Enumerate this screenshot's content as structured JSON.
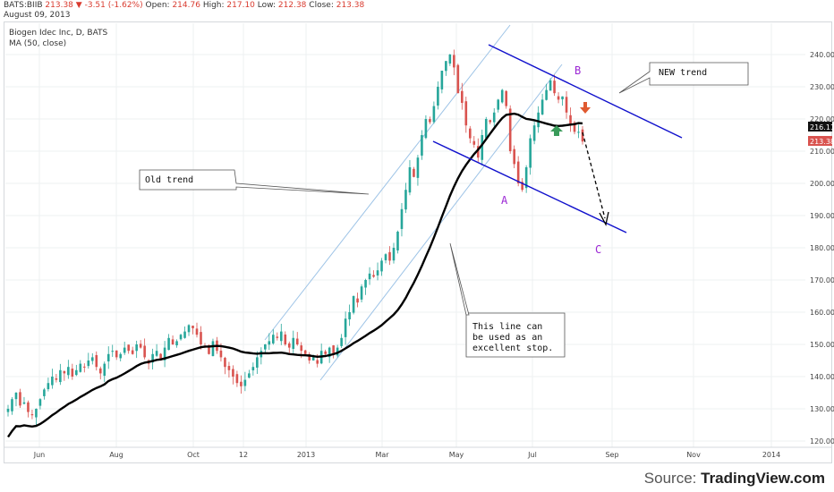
{
  "header": {
    "symbol": "BATS:BIIB",
    "last": "213.38",
    "change": "-3.51 (-1.62%)",
    "open_label": "Open:",
    "open": "214.76",
    "high_label": "High:",
    "high": "217.10",
    "low_label": "Low:",
    "low": "212.38",
    "close_label": "Close:",
    "close": "213.38",
    "date": "August 09, 2013"
  },
  "legend": {
    "line1": "Biogen Idec Inc, D, BATS",
    "line2": "MA (50, close)"
  },
  "source": {
    "prefix": "Source:",
    "name": "TradingView.com"
  },
  "annotations": {
    "old_trend": "Old trend",
    "new_trend": "NEW trend",
    "stop_line1": "This line can",
    "stop_line2": "be used as an",
    "stop_line3": "excellent stop.",
    "point_a": "A",
    "point_b": "B",
    "point_c": "C"
  },
  "colors": {
    "up": "#26a69a",
    "down": "#d9534f",
    "ma": "#000000",
    "new_channel": "#1010cc",
    "old_channel": "#9dc3e6",
    "label_purple": "#9b26d4",
    "arrow_green": "#3a9b5a",
    "arrow_orange": "#e05a30"
  },
  "chart_data": {
    "type": "candlestick",
    "title": "Biogen Idec Inc, D, BATS",
    "ylim": [
      120,
      245
    ],
    "y_ticks": [
      120,
      130,
      140,
      150,
      160,
      170,
      180,
      190,
      200,
      210,
      220,
      230,
      240
    ],
    "x_ticks": [
      "Jun",
      "Aug",
      "Oct",
      "12",
      "2013",
      "Mar",
      "May",
      "Jul",
      "Sep",
      "Nov",
      "2014"
    ],
    "price_labels": {
      "ma": "216.11",
      "last": "213.38"
    },
    "closes": [
      [
        130,
        133,
        135,
        131,
        132,
        129,
        128,
        130,
        133,
        136,
        138,
        140,
        139,
        142,
        141,
        143,
        140,
        142,
        144,
        143,
        145,
        146,
        143,
        141,
        144,
        147,
        148,
        146,
        147,
        149
      ],
      [
        148,
        147,
        150,
        149,
        146,
        144,
        147,
        148,
        145,
        149,
        152,
        150,
        151,
        153,
        154,
        156,
        155,
        153,
        150,
        149,
        147,
        151,
        148,
        146,
        143,
        142,
        140,
        138,
        137,
        139
      ],
      [
        141,
        143,
        146,
        148,
        150,
        151,
        153,
        152,
        154,
        150,
        149,
        152,
        150,
        148,
        147,
        145,
        146,
        144,
        148,
        147,
        149,
        147,
        149,
        152,
        158,
        160,
        165,
        163,
        168,
        170
      ],
      [
        172,
        171,
        173,
        176,
        178,
        176,
        180,
        185,
        192,
        198,
        205,
        202,
        208,
        215,
        220,
        219,
        224,
        230,
        235,
        238,
        240,
        236,
        228,
        225,
        218,
        214,
        212,
        208,
        215,
        220
      ],
      [
        219,
        222,
        226,
        229,
        224,
        210,
        206,
        200,
        198,
        205,
        214,
        218,
        222,
        226,
        229,
        232,
        228,
        226,
        227,
        222,
        218,
        216,
        216,
        213
      ]
    ],
    "series": [
      {
        "name": "MA (50, close)"
      }
    ]
  }
}
